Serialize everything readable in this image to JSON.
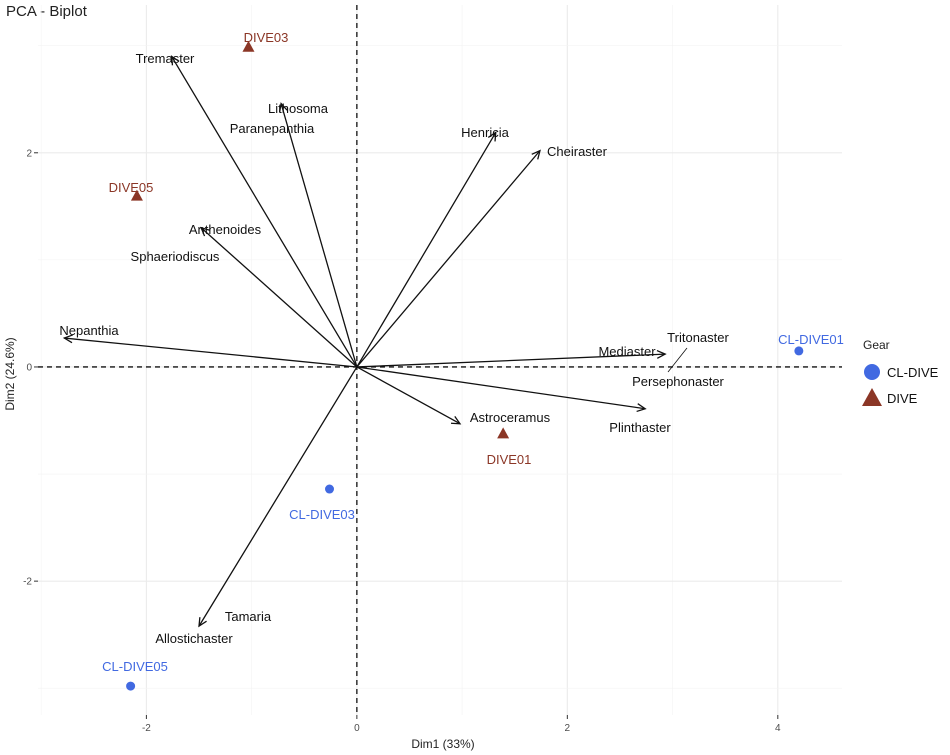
{
  "chart_data": {
    "type": "biplot",
    "title": "PCA - Biplot",
    "xlabel": "Dim1 (33%)",
    "ylabel": "Dim2 (24.6%)",
    "xlim": [
      -3.03,
      4.61
    ],
    "ylim": [
      -3.25,
      3.38
    ],
    "xticks": [
      -2,
      0,
      2,
      4
    ],
    "yticks": [
      -2,
      0,
      2
    ],
    "grid": true,
    "reference_lines": {
      "x": 0,
      "y": 0,
      "style": "dashed"
    },
    "variables": [
      {
        "name": "Tremaster",
        "x": -1.76,
        "y": 2.9
      },
      {
        "name": "Lithosoma",
        "x": -0.72,
        "y": 2.46
      },
      {
        "name": "Paranepanthia",
        "x": -0.72,
        "y": 2.46
      },
      {
        "name": "Henricia",
        "x": 1.32,
        "y": 2.19
      },
      {
        "name": "Cheiraster",
        "x": 1.74,
        "y": 2.02
      },
      {
        "name": "Anthenoides",
        "x": -1.48,
        "y": 1.3
      },
      {
        "name": "Sphaeriodiscus",
        "x": -1.48,
        "y": 1.3
      },
      {
        "name": "Nepanthia",
        "x": -2.78,
        "y": 0.27
      },
      {
        "name": "Tritonaster",
        "x": 2.93,
        "y": 0.12
      },
      {
        "name": "Mediaster",
        "x": 2.93,
        "y": 0.12
      },
      {
        "name": "Persephonaster",
        "x": 2.93,
        "y": 0.12
      },
      {
        "name": "Astroceramus",
        "x": 0.98,
        "y": -0.53
      },
      {
        "name": "Plinthaster",
        "x": 2.74,
        "y": -0.39
      },
      {
        "name": "Tamaria",
        "x": -1.5,
        "y": -2.42
      },
      {
        "name": "Allostichaster",
        "x": -1.5,
        "y": -2.42
      }
    ],
    "observations": [
      {
        "name": "DIVE03",
        "x": -1.03,
        "y": 2.99,
        "group": "DIVE"
      },
      {
        "name": "DIVE05",
        "x": -2.09,
        "y": 1.6,
        "group": "DIVE"
      },
      {
        "name": "CL-DIVE01",
        "x": 4.2,
        "y": 0.15,
        "group": "CL-DIVE"
      },
      {
        "name": "DIVE01",
        "x": 1.39,
        "y": -0.62,
        "group": "DIVE"
      },
      {
        "name": "CL-DIVE03",
        "x": -0.26,
        "y": -1.14,
        "group": "CL-DIVE"
      },
      {
        "name": "CL-DIVE05",
        "x": -2.15,
        "y": -2.98,
        "group": "CL-DIVE"
      }
    ],
    "legend": {
      "title": "Gear",
      "placement": "right",
      "entries": [
        {
          "label": "CL-DIVE",
          "shape": "circle",
          "color": "#4169e1"
        },
        {
          "label": "DIVE",
          "shape": "triangle",
          "color": "#8b3626"
        }
      ]
    }
  }
}
